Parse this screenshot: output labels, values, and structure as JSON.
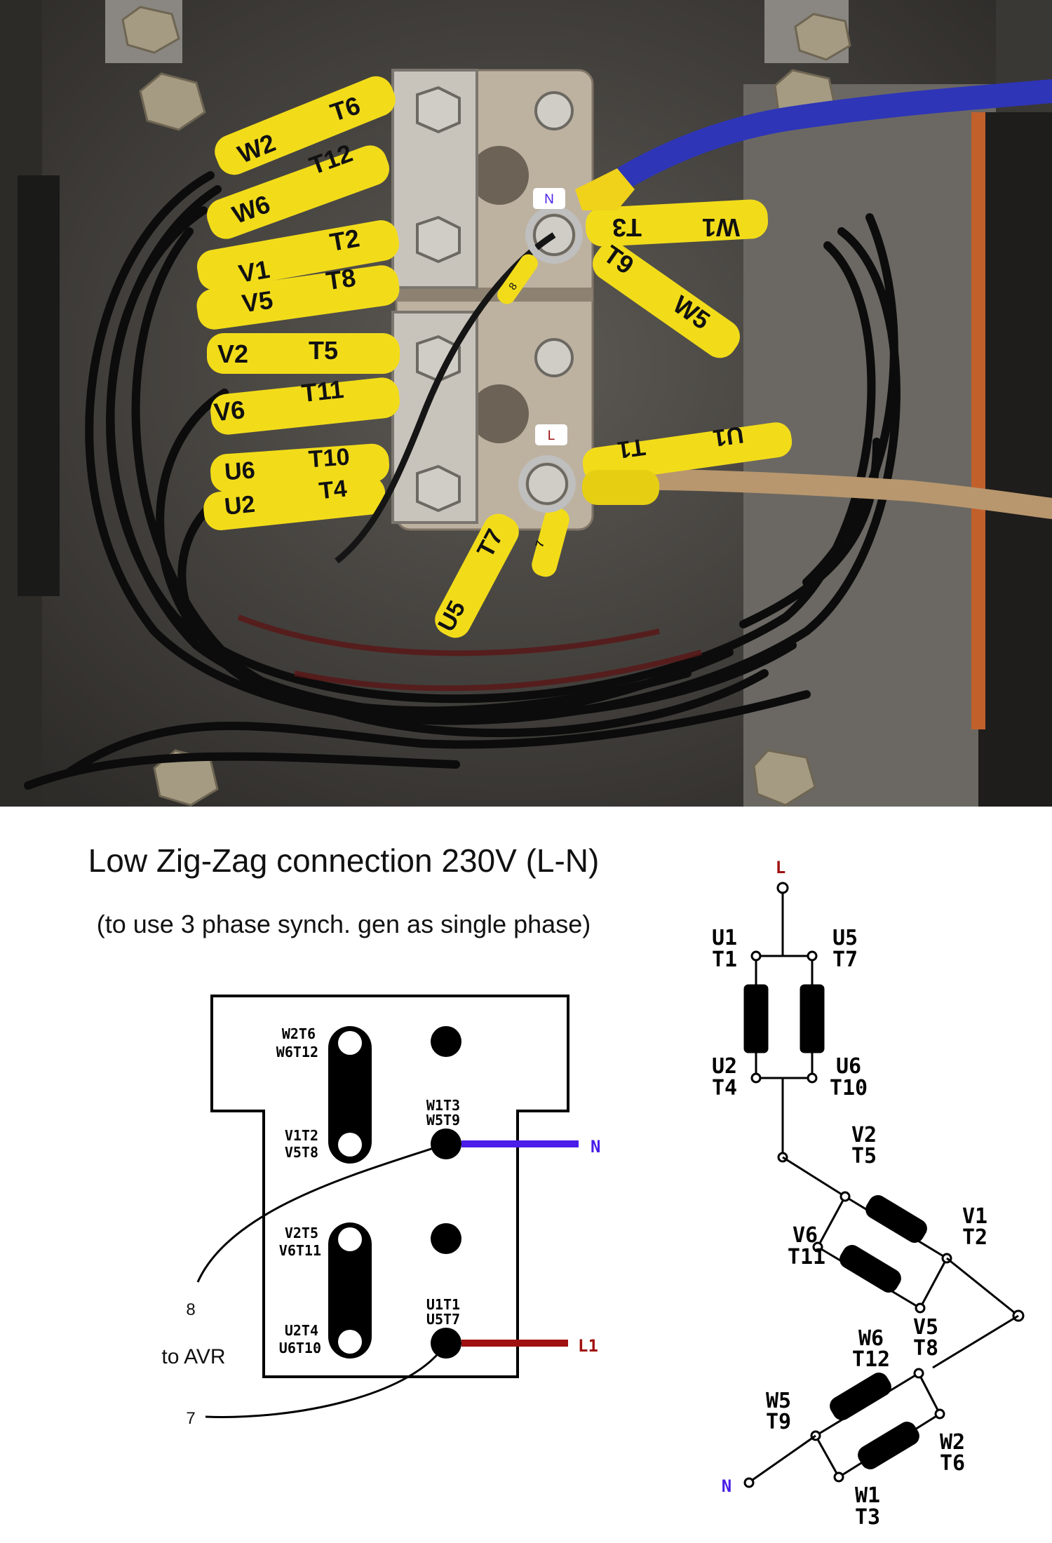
{
  "photo": {
    "marker_n": "N",
    "marker_l": "L",
    "sleeves": {
      "w2": "W2",
      "t6": "T6",
      "w6": "W6",
      "t12": "T12",
      "v1": "V1",
      "t2": "T2",
      "v5": "V5",
      "t8": "T8",
      "v2": "V2",
      "t5": "T5",
      "v6": "V6",
      "t11": "T11",
      "u6": "U6",
      "t10": "T10",
      "u2": "U2",
      "t4": "T4",
      "w1": "W1",
      "t3": "T3",
      "t9": "T9",
      "w5": "W5",
      "u1": "U1",
      "t1": "T1",
      "u5": "U5",
      "t7": "T7",
      "eight": "8",
      "seven": "7"
    }
  },
  "title": "Low Zig-Zag connection 230V (L-N)",
  "subtitle": "(to use 3 phase synch. gen as single phase)",
  "terminal_board": {
    "w2t6": "W2T6",
    "w6t12": "W6T12",
    "v1t2": "V1T2",
    "v5t8": "V5T8",
    "w1t3": "W1T3",
    "w5t9": "W5T9",
    "v2t5": "V2T5",
    "v6t11": "V6T11",
    "u2t4": "U2T4",
    "u6t10": "U6T10",
    "u1t1": "U1T1",
    "u5t7": "U5T7",
    "n_label": "N",
    "l1_label": "L1",
    "wire_8": "8",
    "wire_7": "7",
    "to_avr": "to AVR"
  },
  "schematic": {
    "L": "L",
    "U1": "U1",
    "T1": "T1",
    "U5": "U5",
    "T7": "T7",
    "U2": "U2",
    "T4": "T4",
    "U6": "U6",
    "T10": "T10",
    "V2": "V2",
    "T5": "T5",
    "V1": "V1",
    "T2": "T2",
    "V6": "V6",
    "T11": "T11",
    "V5": "V5",
    "T8": "T8",
    "W6": "W6",
    "T12": "T12",
    "W5": "W5",
    "T9": "T9",
    "W2": "W2",
    "T6": "T6",
    "W1": "W1",
    "T3": "T3",
    "N": "N"
  },
  "colors": {
    "neutral_blue": "#4a1de8",
    "line_red": "#a01010",
    "sleeve_yellow": "#f2dc1a",
    "panel_grey": "#4f4c48"
  }
}
